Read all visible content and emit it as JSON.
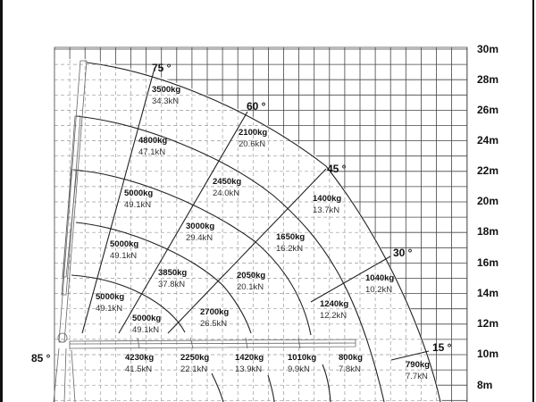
{
  "height_axis": [
    "30m",
    "28m",
    "26m",
    "24m",
    "22m",
    "20m",
    "18m",
    "16m",
    "14m",
    "12m",
    "10m",
    "8m"
  ],
  "angles": [
    {
      "label": "75 °"
    },
    {
      "label": "60 °"
    },
    {
      "label": "45 °"
    },
    {
      "label": "30 °"
    },
    {
      "label": "15 °"
    },
    {
      "label": "85 °"
    }
  ],
  "loads": [
    {
      "kg": "3500kg",
      "kn": "34.3kN"
    },
    {
      "kg": "4800kg",
      "kn": "47.1kN"
    },
    {
      "kg": "5000kg",
      "kn": "49.1kN"
    },
    {
      "kg": "5000kg",
      "kn": "49.1kN"
    },
    {
      "kg": "5000kg",
      "kn": "49.1kN"
    },
    {
      "kg": "5000kg",
      "kn": "49.1kN"
    },
    {
      "kg": "2100kg",
      "kn": "20.6kN"
    },
    {
      "kg": "2450kg",
      "kn": "24.0kN"
    },
    {
      "kg": "3000kg",
      "kn": "29.4kN"
    },
    {
      "kg": "3850kg",
      "kn": "37.8kN"
    },
    {
      "kg": "2700kg",
      "kn": "26.5kN"
    },
    {
      "kg": "1400kg",
      "kn": "13.7kN"
    },
    {
      "kg": "1650kg",
      "kn": "16.2kN"
    },
    {
      "kg": "2050kg",
      "kn": "20.1kN"
    },
    {
      "kg": "1040kg",
      "kn": "10.2kN"
    },
    {
      "kg": "1240kg",
      "kn": "12.2kN"
    },
    {
      "kg": "4230kg",
      "kn": "41.5kN"
    },
    {
      "kg": "2250kg",
      "kn": "22.1kN"
    },
    {
      "kg": "1420kg",
      "kn": "13.9kN"
    },
    {
      "kg": "1010kg",
      "kn": "9.9kN"
    },
    {
      "kg": "800kg",
      "kn": "7.8kN"
    },
    {
      "kg": "790kg",
      "kn": "7.7kN"
    }
  ]
}
